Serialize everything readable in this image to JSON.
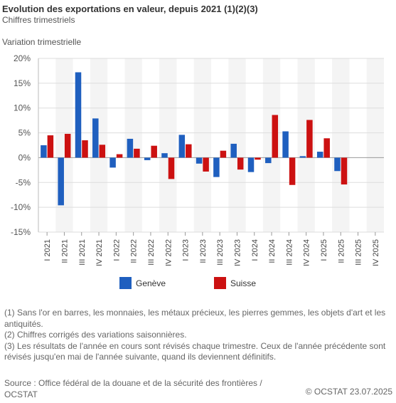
{
  "header": {
    "title": "Evolution des exportations en valeur, depuis 2021 (1)(2)(3)",
    "subtitle": "Chiffres trimestriels",
    "yaxis_title": "Variation trimestrielle"
  },
  "chart_data": {
    "type": "bar",
    "ylabel": "Variation trimestrielle",
    "ylim": [
      -15,
      20
    ],
    "yticks": [
      -15,
      -10,
      -5,
      0,
      5,
      10,
      15,
      20
    ],
    "ytick_labels": [
      "-15%",
      "-10%",
      "-5%",
      "0%",
      "5%",
      "10%",
      "15%",
      "20%"
    ],
    "categories": [
      "I 2021",
      "II 2021",
      "III 2021",
      "IV 2021",
      "I 2022",
      "II 2022",
      "III 2022",
      "IV 2022",
      "I 2023",
      "II 2023",
      "III 2023",
      "IV 2023",
      "I 2024",
      "II 2024",
      "III 2024",
      "IV 2024",
      "I 2025",
      "II 2025",
      "III 2025",
      "IV 2025"
    ],
    "series": [
      {
        "name": "Genève",
        "color": "#1f5fbf",
        "values": [
          2.5,
          -9.6,
          17.2,
          7.9,
          -2.0,
          3.8,
          -0.5,
          0.9,
          4.6,
          -1.2,
          -3.9,
          2.8,
          -2.9,
          -1.1,
          5.3,
          0.3,
          1.2,
          -2.7,
          null,
          null
        ]
      },
      {
        "name": "Suisse",
        "color": "#cc1111",
        "values": [
          4.5,
          4.8,
          3.5,
          2.6,
          0.7,
          1.8,
          2.4,
          -4.3,
          2.7,
          -2.8,
          1.4,
          -2.4,
          -0.4,
          8.6,
          -5.5,
          7.6,
          3.9,
          -5.4,
          null,
          null
        ]
      }
    ],
    "grid": true,
    "legend_position": "bottom"
  },
  "notes": [
    "(1) Sans l'or en barres, les monnaies, les métaux précieux, les pierres gemmes, les objets d'art et les antiquités.",
    "(2) Chiffres corrigés des variations saisonnières.",
    "(3) Les résultats de l'année en cours sont révisés chaque trimestre. Ceux de l'année précédente sont révisés jusqu'en mai de l'année suivante, quand ils deviennent définitifs."
  ],
  "footer": {
    "source": "Source : Office fédéral de la douane et de la sécurité des frontières / OCSTAT",
    "copyright": "© OCSTAT 23.07.2025"
  }
}
